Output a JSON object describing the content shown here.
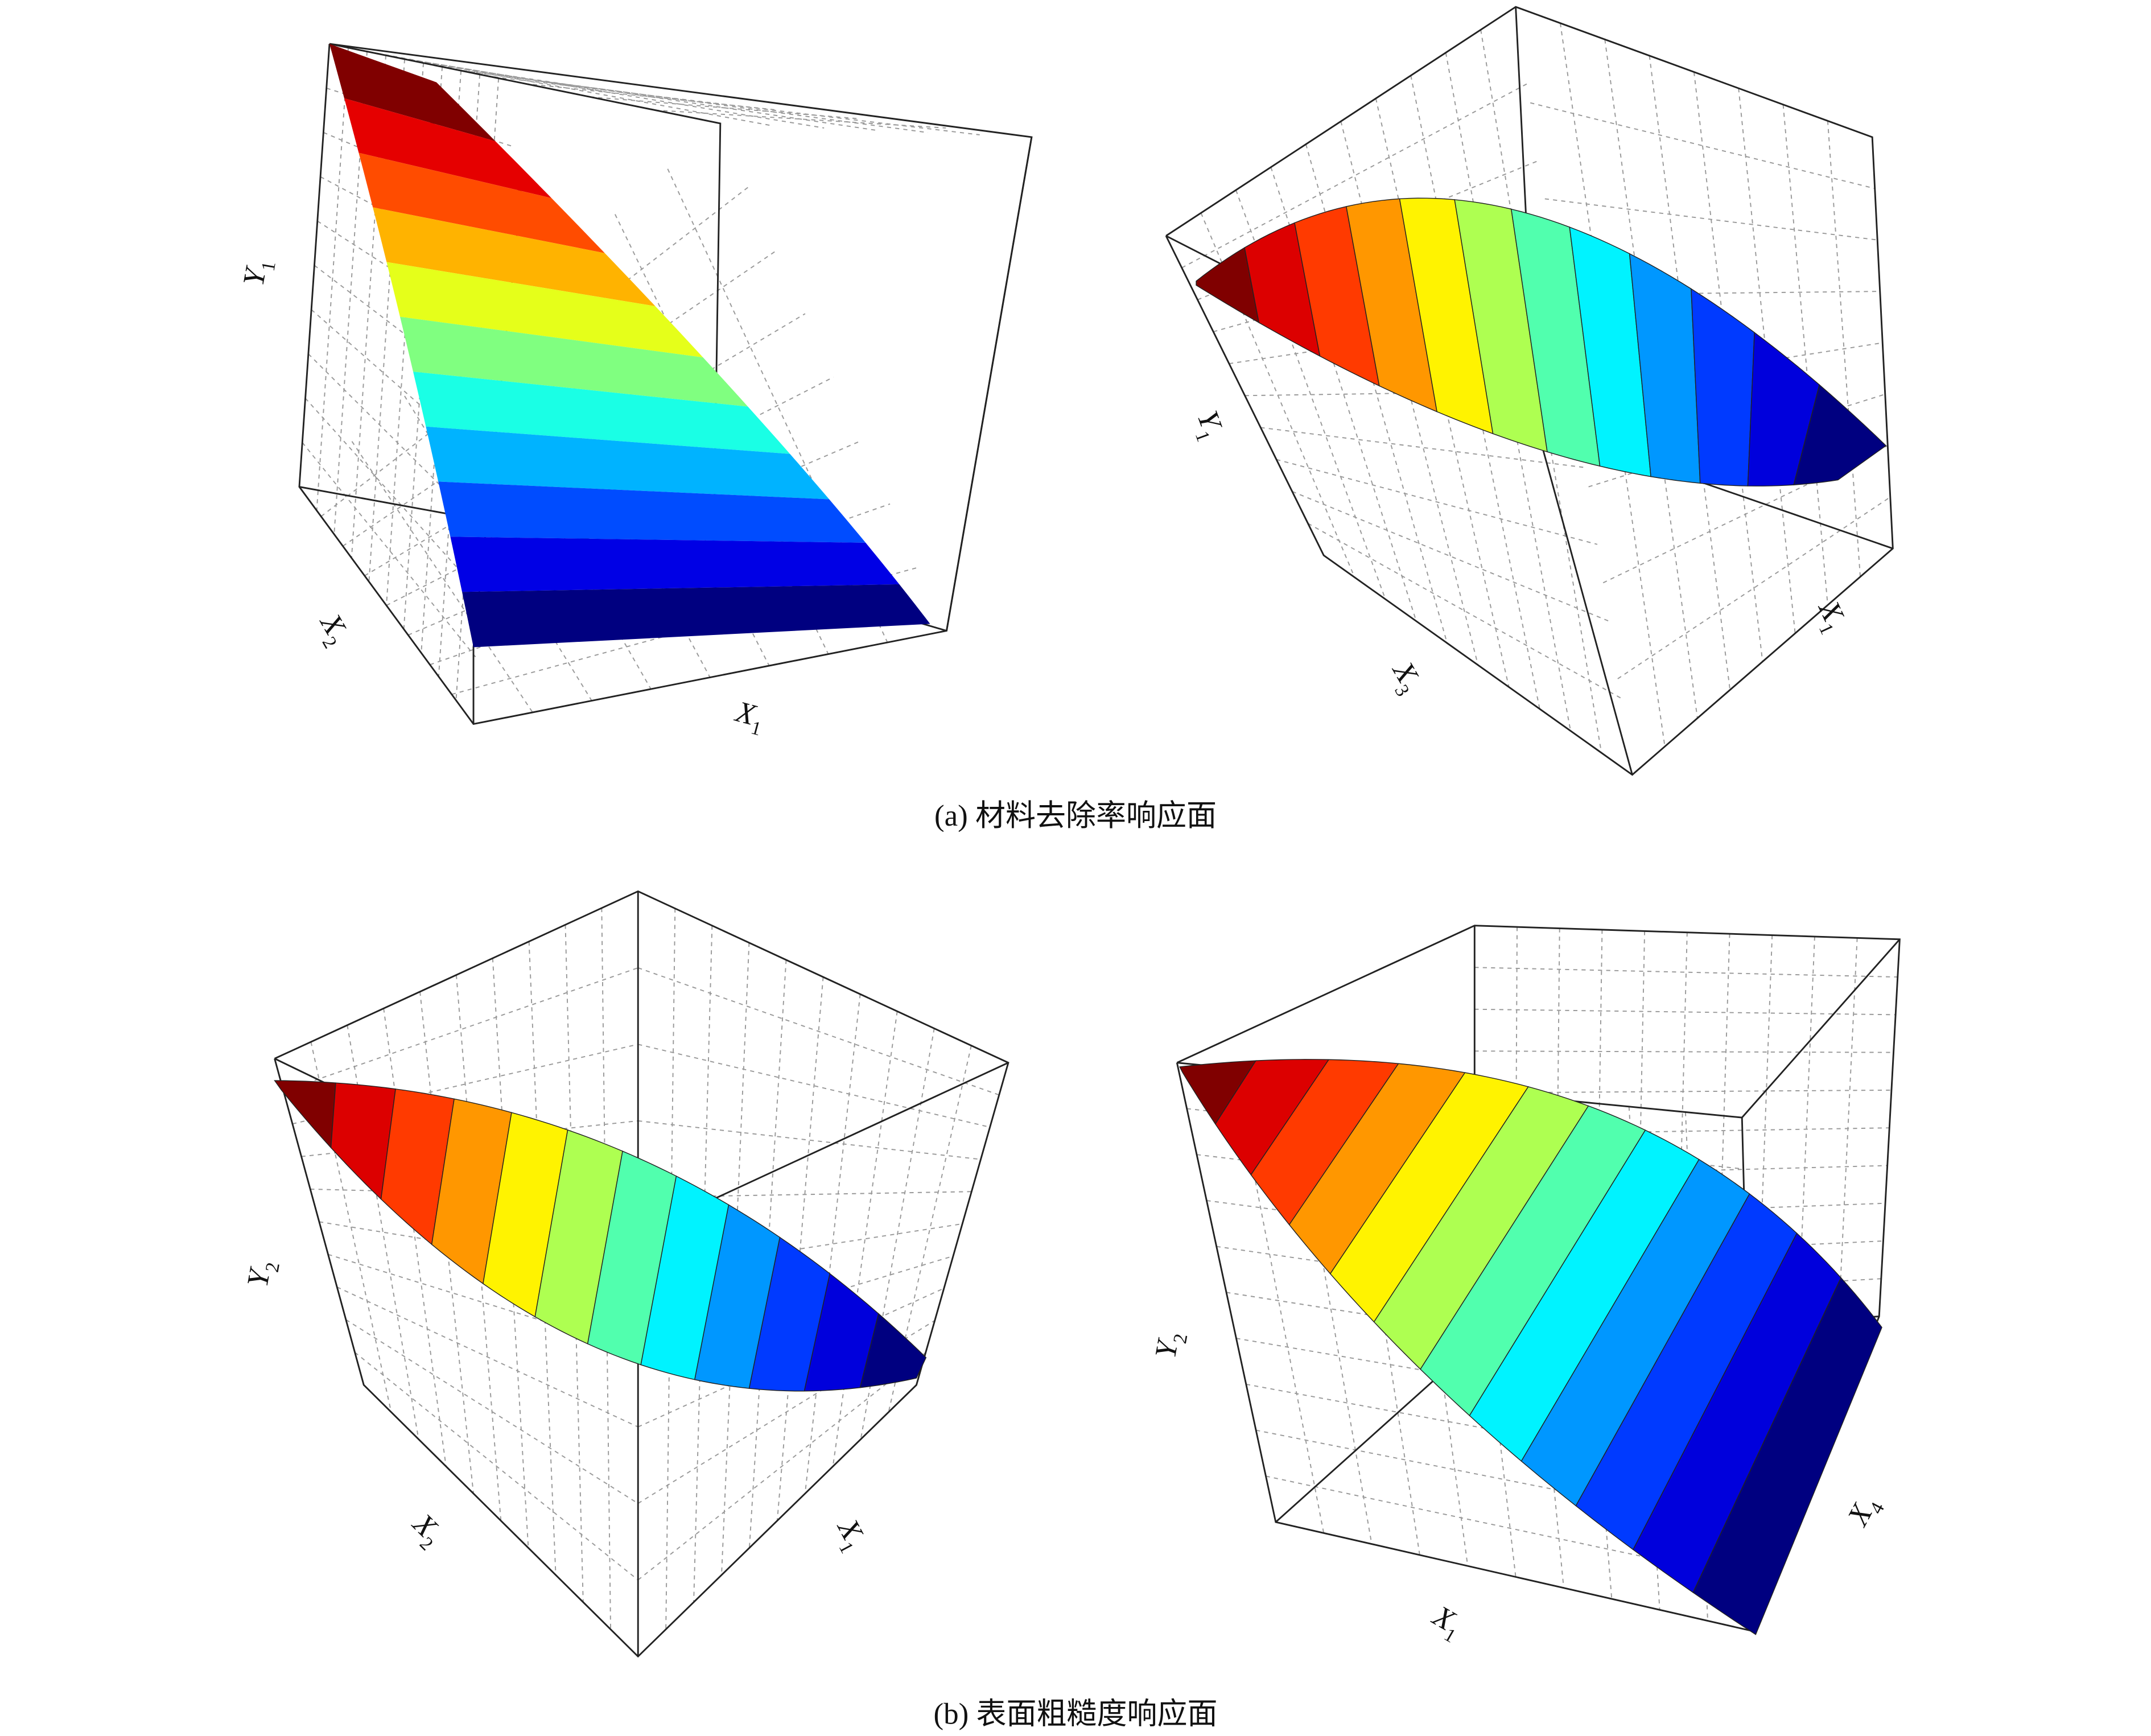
{
  "figure": {
    "panels": [
      {
        "axes": [
          {
            "text": "Y",
            "sub": "1"
          },
          {
            "text": "X",
            "sub": "2"
          },
          {
            "text": "X",
            "sub": "1"
          }
        ]
      },
      {
        "axes": [
          {
            "text": "Y",
            "sub": "1"
          },
          {
            "text": "X",
            "sub": "3"
          },
          {
            "text": "X",
            "sub": "1"
          }
        ]
      },
      {
        "axes": [
          {
            "text": "Y",
            "sub": "2"
          },
          {
            "text": "X",
            "sub": "2"
          },
          {
            "text": "X",
            "sub": "1"
          }
        ]
      },
      {
        "axes": [
          {
            "text": "Y",
            "sub": "2"
          },
          {
            "text": "X",
            "sub": "1"
          },
          {
            "text": "X",
            "sub": "4"
          }
        ]
      }
    ],
    "captions": [
      "(a) 材料去除率响应面",
      "(b) 表面粗糙度响应面"
    ]
  }
}
